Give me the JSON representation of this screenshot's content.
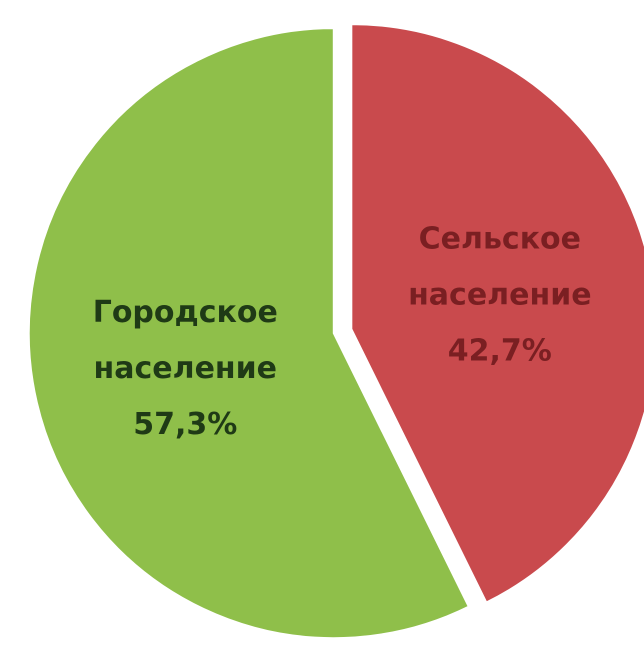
{
  "chart_data": {
    "type": "pie",
    "title": "",
    "slices": [
      {
        "label_lines": [
          "Сельское",
          "население",
          "42,7%"
        ],
        "value": 42.7,
        "color": "#c94a4d",
        "label_color": "#7a1f22",
        "exploded": true
      },
      {
        "label_lines": [
          "Городское",
          "население",
          "57,3%"
        ],
        "value": 57.3,
        "color": "#8fbf4a",
        "label_color": "#1f3a16",
        "exploded": false
      }
    ],
    "start_angle_deg": 0,
    "direction": "clockwise",
    "legend": "none"
  }
}
